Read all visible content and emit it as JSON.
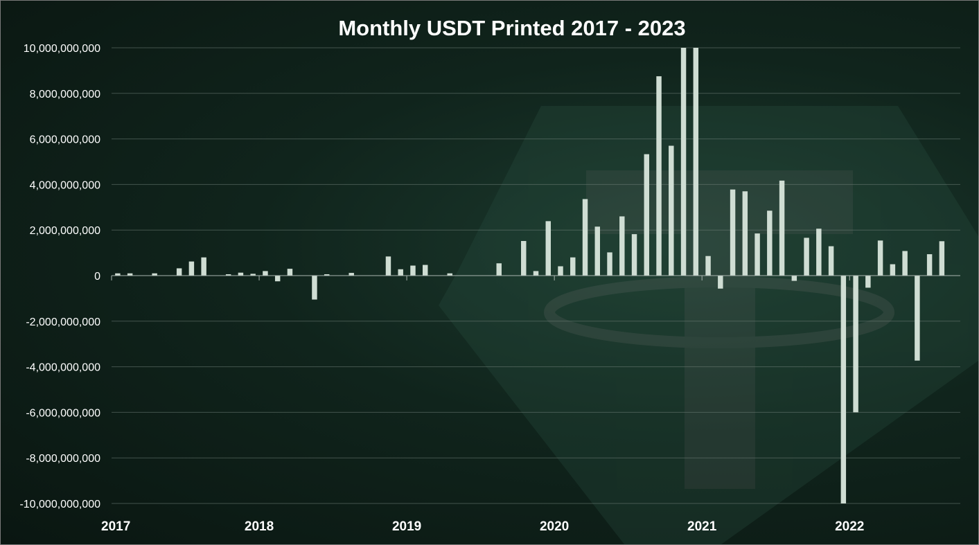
{
  "colors": {
    "background": "#10241c",
    "bar": "#cfddd3",
    "text": "#ffffff",
    "watermark": "#2a4a3c"
  },
  "chart_data": {
    "type": "bar",
    "title": "Monthly USDT Printed 2017 - 2023",
    "xlabel": "",
    "ylabel": "",
    "ylim": [
      -10000000000,
      10000000000
    ],
    "y_ticks": [
      "10,000,000,000",
      "8,000,000,000",
      "6,000,000,000",
      "4,000,000,000",
      "2,000,000,000",
      "0",
      "-2,000,000,000",
      "-4,000,000,000",
      "-6,000,000,000",
      "-8,000,000,000",
      "-10,000,000,000"
    ],
    "x_tick_labels": [
      "2017",
      "2018",
      "2019",
      "2020",
      "2021",
      "2022"
    ],
    "grid": true,
    "legend": "none",
    "categories": [
      "2017-01",
      "2017-02",
      "2017-03",
      "2017-04",
      "2017-05",
      "2017-06",
      "2017-07",
      "2017-08",
      "2017-09",
      "2017-10",
      "2017-11",
      "2017-12",
      "2018-01",
      "2018-02",
      "2018-03",
      "2018-04",
      "2018-05",
      "2018-06",
      "2018-07",
      "2018-08",
      "2018-09",
      "2018-10",
      "2018-11",
      "2018-12",
      "2019-01",
      "2019-02",
      "2019-03",
      "2019-04",
      "2019-05",
      "2019-06",
      "2019-07",
      "2019-08",
      "2019-09",
      "2019-10",
      "2019-11",
      "2019-12",
      "2020-01",
      "2020-02",
      "2020-03",
      "2020-04",
      "2020-05",
      "2020-06",
      "2020-07",
      "2020-08",
      "2020-09",
      "2020-10",
      "2020-11",
      "2020-12",
      "2021-01",
      "2021-02",
      "2021-03",
      "2021-04",
      "2021-05",
      "2021-06",
      "2021-07",
      "2021-08",
      "2021-09",
      "2021-10",
      "2021-11",
      "2021-12",
      "2022-01",
      "2022-02",
      "2022-03",
      "2022-04",
      "2022-05",
      "2022-06",
      "2022-07",
      "2022-08",
      "2022-09"
    ],
    "values": [
      100000000,
      100000000,
      0,
      100000000,
      0,
      320000000,
      620000000,
      800000000,
      0,
      60000000,
      130000000,
      80000000,
      200000000,
      -250000000,
      300000000,
      0,
      -1050000000,
      60000000,
      0,
      120000000,
      0,
      0,
      840000000,
      280000000,
      440000000,
      470000000,
      0,
      100000000,
      0,
      0,
      0,
      540000000,
      0,
      1520000000,
      200000000,
      2390000000,
      410000000,
      800000000,
      3360000000,
      2150000000,
      1020000000,
      2600000000,
      1820000000,
      5330000000,
      8750000000,
      5700000000,
      10000000000,
      10000000000,
      860000000,
      -570000000,
      3780000000,
      3700000000,
      1850000000,
      2850000000,
      4170000000,
      -230000000,
      1660000000,
      2060000000,
      1290000000,
      -10000000000,
      -6000000000,
      -530000000,
      1540000000,
      500000000,
      1080000000,
      -3730000000,
      940000000,
      1510000000,
      0
    ]
  }
}
